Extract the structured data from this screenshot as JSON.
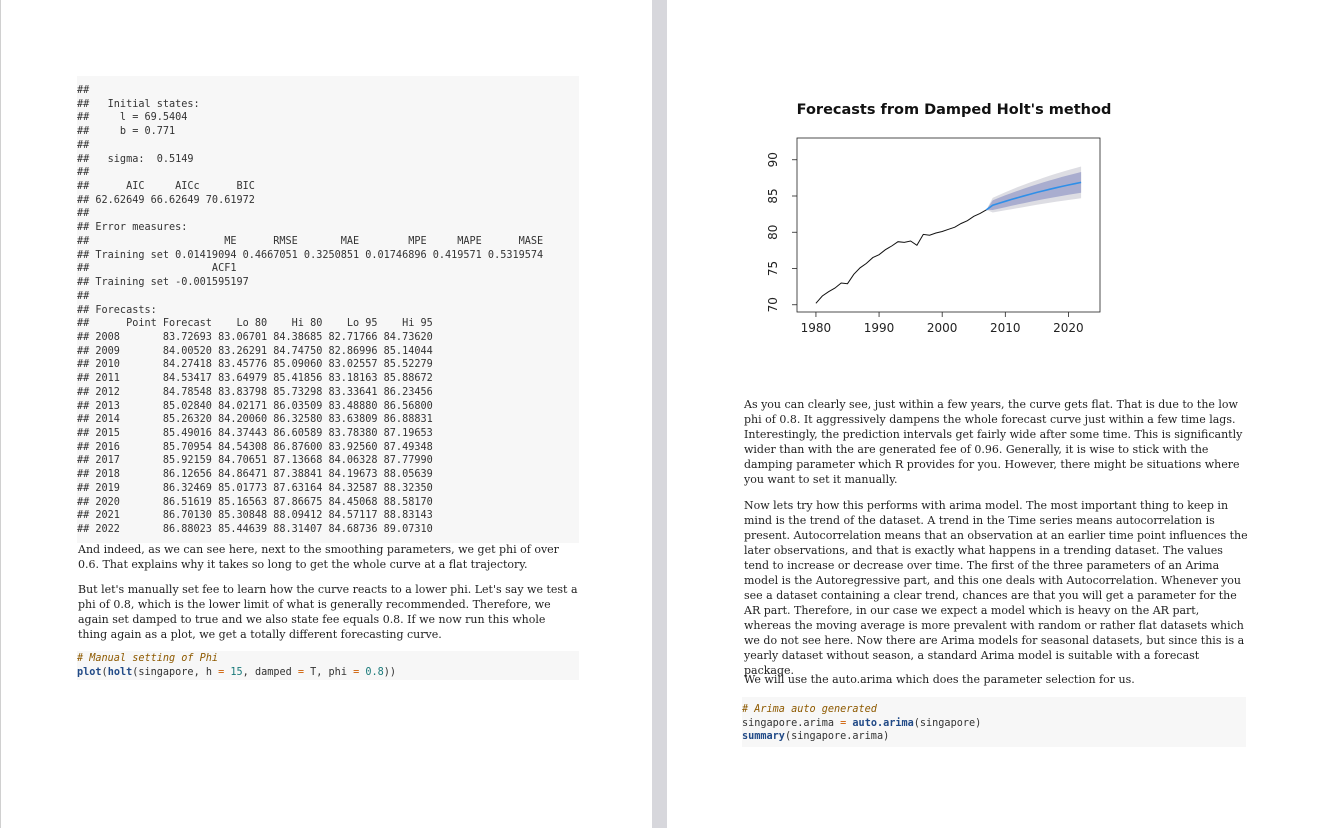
{
  "left": {
    "output_lines": [
      "##",
      "##   Initial states:",
      "##     l = 69.5404",
      "##     b = 0.771",
      "##",
      "##   sigma:  0.5149",
      "##",
      "##      AIC     AICc      BIC",
      "## 62.62649 66.62649 70.61972",
      "##",
      "## Error measures:",
      "##                      ME      RMSE       MAE        MPE     MAPE      MASE",
      "## Training set 0.01419094 0.4667051 0.3250851 0.01746896 0.419571 0.5319574",
      "##                    ACF1",
      "## Training set -0.001595197",
      "##",
      "## Forecasts:",
      "##      Point Forecast    Lo 80    Hi 80    Lo 95    Hi 95",
      "## 2008       83.72693 83.06701 84.38685 82.71766 84.73620",
      "## 2009       84.00520 83.26291 84.74750 82.86996 85.14044",
      "## 2010       84.27418 83.45776 85.09060 83.02557 85.52279",
      "## 2011       84.53417 83.64979 85.41856 83.18163 85.88672",
      "## 2012       84.78548 83.83798 85.73298 83.33641 86.23456",
      "## 2013       85.02840 84.02171 86.03509 83.48880 86.56800",
      "## 2014       85.26320 84.20060 86.32580 83.63809 86.88831",
      "## 2015       85.49016 84.37443 86.60589 83.78380 87.19653",
      "## 2016       85.70954 84.54308 86.87600 83.92560 87.49348",
      "## 2017       85.92159 84.70651 87.13668 84.06328 87.77990",
      "## 2018       86.12656 84.86471 87.38841 84.19673 88.05639",
      "## 2019       86.32469 85.01773 87.63164 84.32587 88.32350",
      "## 2020       86.51619 85.16563 87.86675 84.45068 88.58170",
      "## 2021       86.70130 85.30848 88.09412 84.57117 88.83143",
      "## 2022       86.88023 85.44639 88.31407 84.68736 89.07310"
    ],
    "para_indeed": "And indeed, as we can see here, next to the smoothing parameters, we get phi of over 0.6. That explains why it takes so long to get the whole curve at a flat trajectory.",
    "para_manual": "But let's manually set fee to learn how the curve reacts to a lower phi. Let's say we test a phi of 0.8, which is the lower limit of what is generally recommended. Therefore, we again set damped to true and we also state fee equals 0.8. If we now run this whole thing again as a plot, we get a totally different forecasting curve.",
    "code_phi": {
      "comment": "# Manual setting of Phi",
      "fn_plot": "plot",
      "fn_holt": "holt",
      "args_a": "(singapore, h ",
      "eq": "=",
      "num_h": "15",
      "args_b": ", damped ",
      "arg_t": " T, phi ",
      "num_phi": "0.8",
      "close": "))"
    }
  },
  "right": {
    "chart_data": {
      "type": "line",
      "title": "Forecasts from Damped Holt's method",
      "xlabel": "",
      "ylabel": "",
      "xlim": [
        1977,
        2025
      ],
      "ylim": [
        69,
        93
      ],
      "x_ticks": [
        1980,
        1990,
        2000,
        2010,
        2020
      ],
      "y_ticks": [
        70,
        75,
        80,
        85,
        90
      ],
      "history": {
        "x": [
          1980,
          1981,
          1982,
          1983,
          1984,
          1985,
          1986,
          1987,
          1988,
          1989,
          1990,
          1991,
          1992,
          1993,
          1994,
          1995,
          1996,
          1997,
          1998,
          1999,
          2000,
          2001,
          2002,
          2003,
          2004,
          2005,
          2006,
          2007
        ],
        "y": [
          70.2,
          71.2,
          71.8,
          72.3,
          73.0,
          72.9,
          74.2,
          75.1,
          75.7,
          76.5,
          76.9,
          77.6,
          78.1,
          78.7,
          78.6,
          78.8,
          78.2,
          79.7,
          79.6,
          79.9,
          80.1,
          80.4,
          80.7,
          81.2,
          81.6,
          82.2,
          82.6,
          83.1
        ]
      },
      "forecast": {
        "x": [
          2008,
          2009,
          2010,
          2011,
          2012,
          2013,
          2014,
          2015,
          2016,
          2017,
          2018,
          2019,
          2020,
          2021,
          2022
        ],
        "point": [
          83.72693,
          84.0052,
          84.27418,
          84.53417,
          84.78548,
          85.0284,
          85.2632,
          85.49016,
          85.70954,
          85.92159,
          86.12656,
          86.32469,
          86.51619,
          86.7013,
          86.88023
        ],
        "lo80": [
          83.06701,
          83.26291,
          83.45776,
          83.64979,
          83.83798,
          84.02171,
          84.2006,
          84.37443,
          84.54308,
          84.70651,
          84.86471,
          85.01773,
          85.16563,
          85.30848,
          85.44639
        ],
        "hi80": [
          84.38685,
          84.7475,
          85.0906,
          85.41856,
          85.73298,
          86.03509,
          86.3258,
          86.60589,
          86.876,
          87.13668,
          87.38841,
          87.63164,
          87.86675,
          88.09412,
          88.31407
        ],
        "lo95": [
          82.71766,
          82.86996,
          83.02557,
          83.18163,
          83.33641,
          83.4888,
          83.63809,
          83.7838,
          83.9256,
          84.06328,
          84.19673,
          84.32587,
          84.45068,
          84.57117,
          84.68736
        ],
        "hi95": [
          84.7362,
          85.14044,
          85.52279,
          85.88672,
          86.23456,
          86.568,
          86.88831,
          87.19653,
          87.49348,
          87.7799,
          88.05639,
          88.3235,
          88.5817,
          88.83143,
          89.0731
        ]
      },
      "colors": {
        "line": "#111111",
        "forecast": "#2f8fe8",
        "band80": "#a9adcf",
        "band95": "#dddde3"
      }
    },
    "para_flat": "As you can clearly see, just within a few years, the curve gets flat. That is due to the low phi of 0.8. It aggressively dampens the whole forecast curve just within a few time lags. Interestingly, the prediction intervals get fairly wide after some time. This is significantly wider than with the are generated fee of 0.96. Generally, it is wise to stick with the damping parameter which R provides for you. However, there might be situations where you want to set it manually.",
    "para_arima": "Now lets try how this performs with arima model. The most important thing to keep in mind is the trend of the dataset. A trend in the Time series means autocorrelation is present. Autocorrelation means that an observation at an earlier time point influences the later observations, and that is exactly what happens in a trending dataset. The values tend to increase or decrease over time. The first of the three parameters of an Arima model is the Autoregressive part, and this one deals with Autocorrelation. Whenever you see a dataset containing a clear trend, chances are that you will get a parameter for the AR part. Therefore, in our case we expect a model which is heavy on the AR part, whereas the moving average is more prevalent with random or rather flat datasets which we do not see here. Now there are Arima models for seasonal datasets, but since this is a yearly dataset without season, a standard Arima model is suitable with a forecast package.",
    "para_auto": "We will use the auto.arima which does the parameter selection for us.",
    "code_arima": {
      "comment": "# Arima auto generated",
      "line2_a": "singapore.arima ",
      "eq": "=",
      "fn_auto": "auto.arima",
      "line2_b": "(singapore)",
      "fn_summary": "summary",
      "line3_b": "(singapore.arima)"
    }
  }
}
